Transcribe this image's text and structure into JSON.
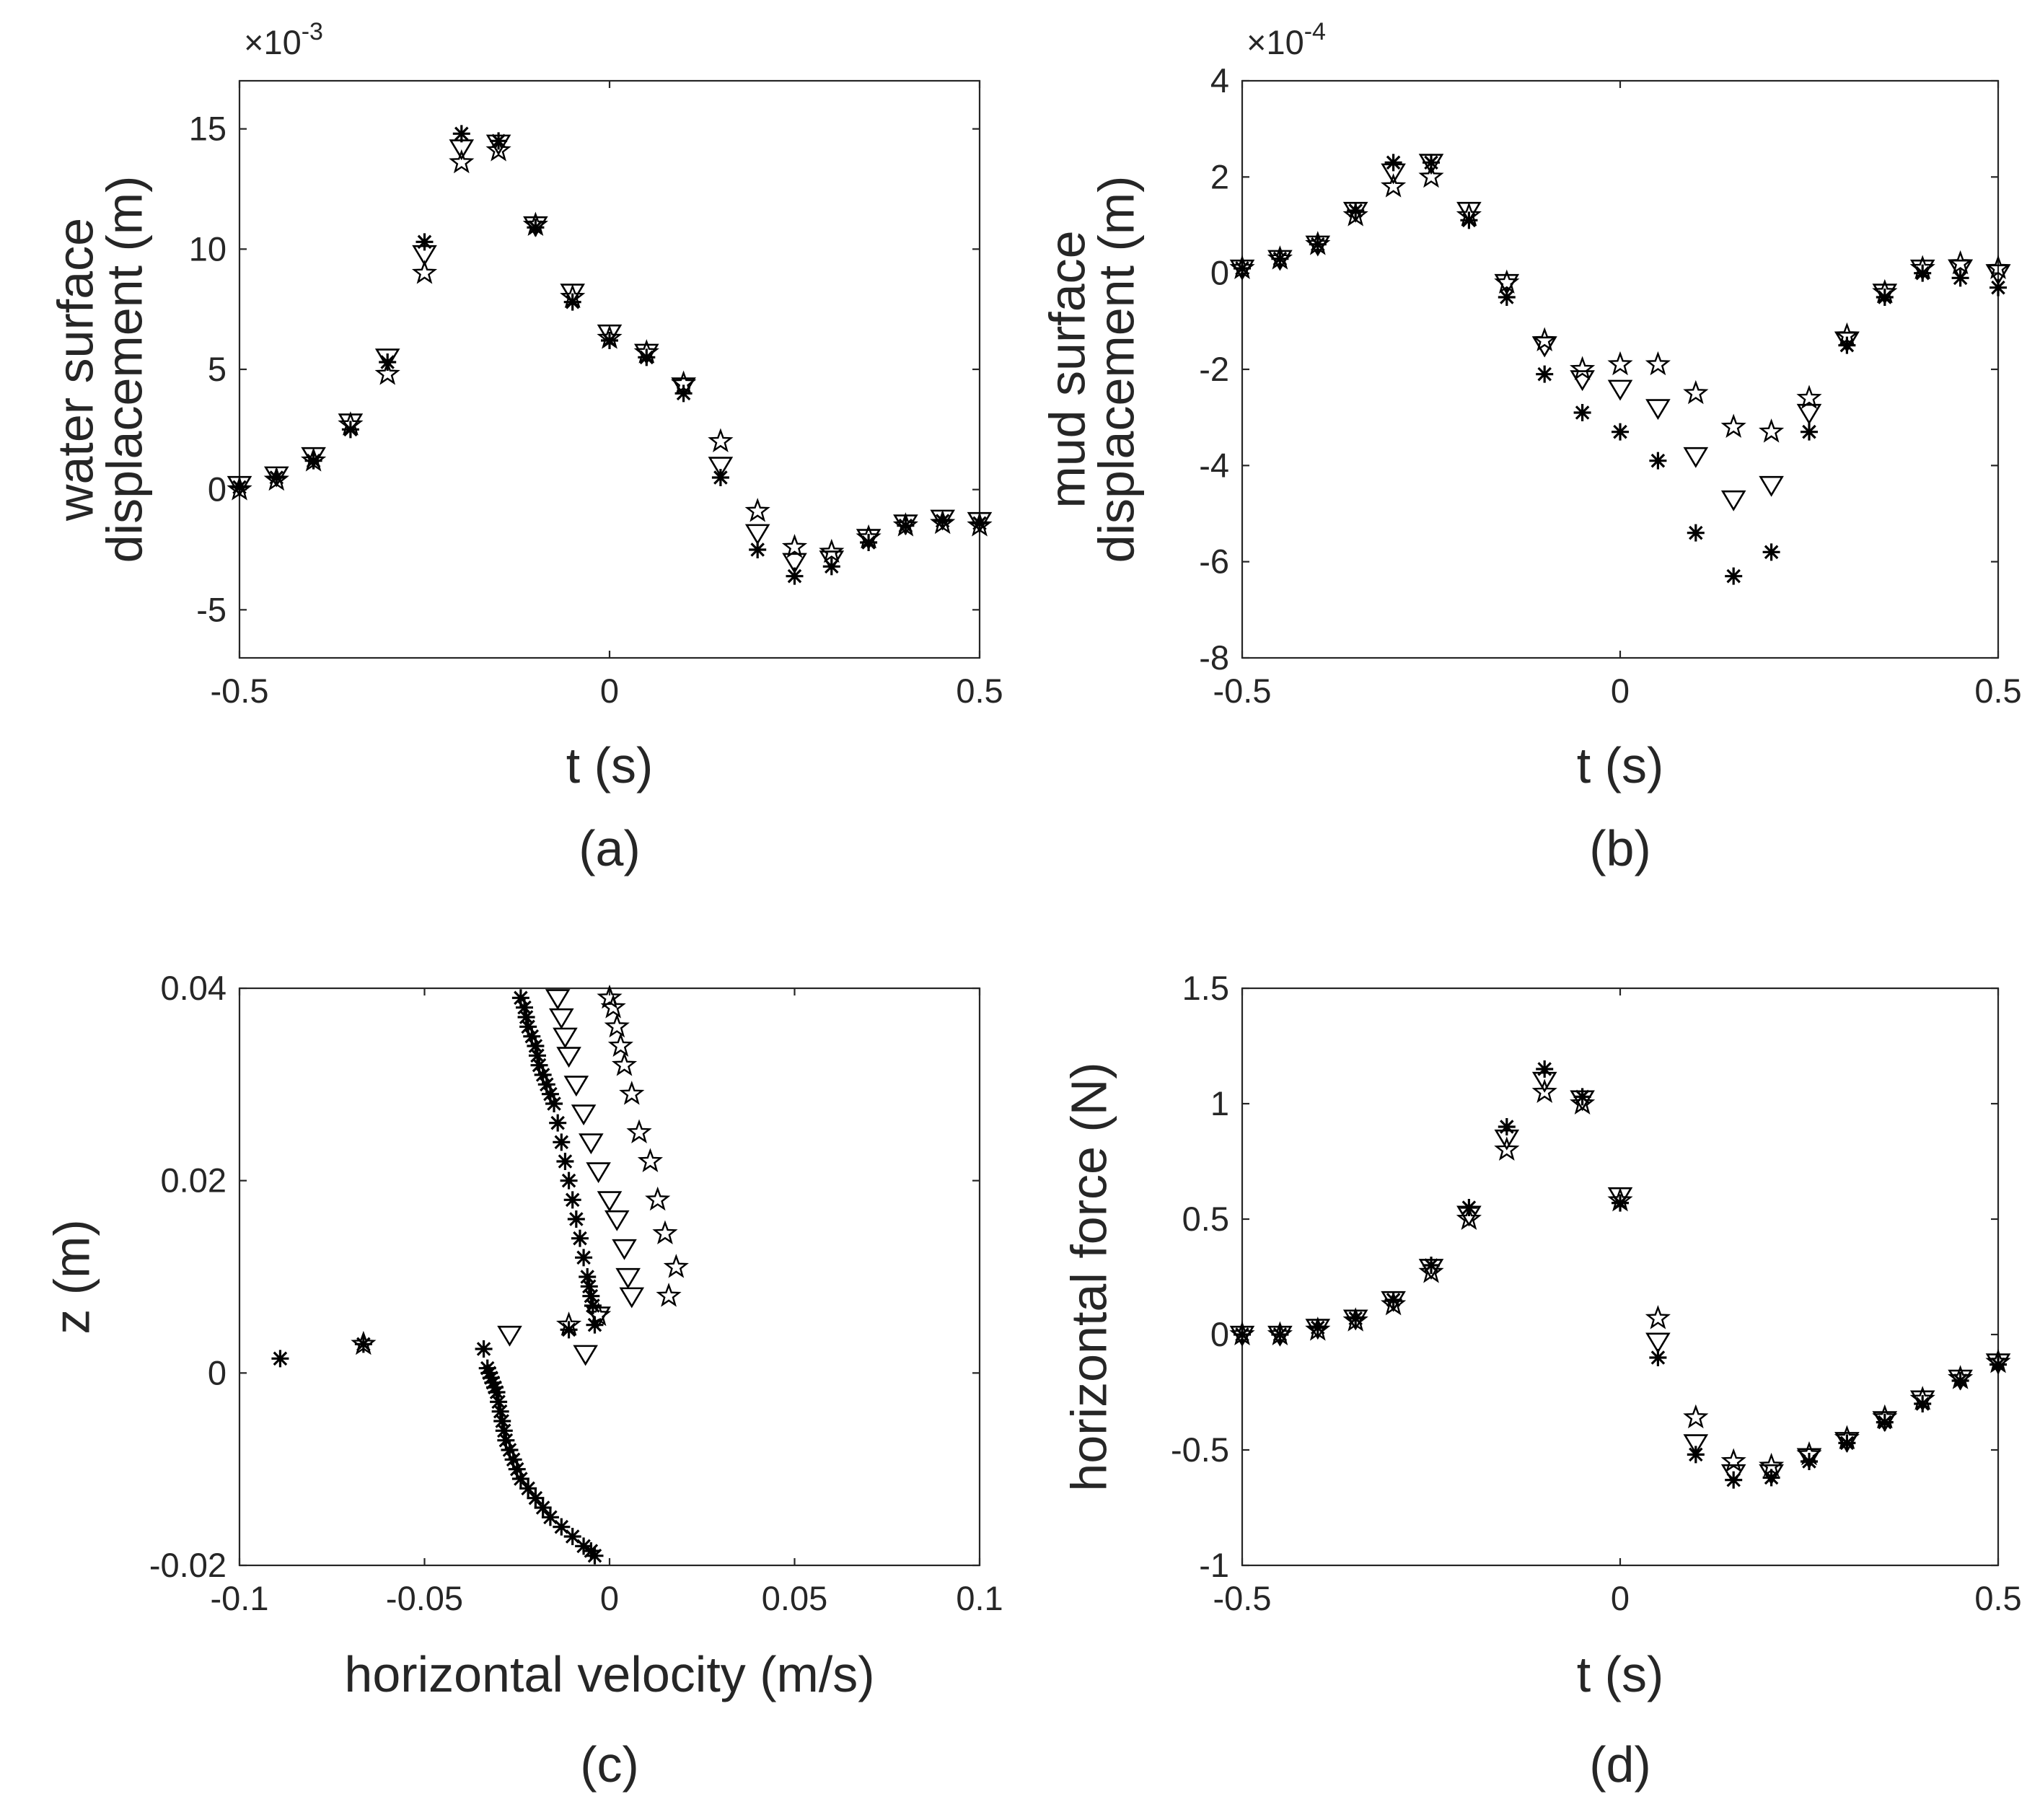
{
  "chart_data": [
    {
      "type": "scatter",
      "panel_label": "(a)",
      "xlabel": "t (s)",
      "ylabel_lines": [
        "water surface",
        "displacement (m)"
      ],
      "xlim": [
        -0.5,
        0.5
      ],
      "ylim": [
        -7,
        17
      ],
      "xticks": [
        -0.5,
        0,
        0.5
      ],
      "xtick_labels": [
        "-0.5",
        "0",
        "0.5"
      ],
      "yticks": [
        -5,
        0,
        5,
        10,
        15
      ],
      "ytick_labels": [
        "-5",
        "0",
        "5",
        "10",
        "15"
      ],
      "exponent_label": "×10",
      "exponent_power": "-3",
      "grid": false,
      "series": [
        {
          "marker": "asterisk",
          "x": [
            -0.5,
            -0.45,
            -0.4,
            -0.35,
            -0.3,
            -0.25,
            -0.2,
            -0.15,
            -0.1,
            -0.05,
            0,
            0.05,
            0.1,
            0.15,
            0.2,
            0.25,
            0.3,
            0.35,
            0.4,
            0.45,
            0.5
          ],
          "y": [
            0.1,
            0.5,
            1.2,
            2.5,
            5.3,
            10.3,
            14.8,
            14.5,
            10.9,
            7.8,
            6.2,
            5.5,
            4.0,
            0.5,
            -2.5,
            -3.6,
            -3.2,
            -2.2,
            -1.5,
            -1.3,
            -1.4
          ]
        },
        {
          "marker": "triangle-down",
          "x": [
            -0.5,
            -0.45,
            -0.4,
            -0.35,
            -0.3,
            -0.25,
            -0.2,
            -0.15,
            -0.1,
            -0.05,
            0,
            0.05,
            0.1,
            0.15,
            0.2,
            0.25,
            0.3,
            0.35,
            0.4,
            0.45,
            0.5
          ],
          "y": [
            0.2,
            0.6,
            1.4,
            2.8,
            5.5,
            9.8,
            14.2,
            14.4,
            11.0,
            8.2,
            6.5,
            5.7,
            4.3,
            1.0,
            -1.8,
            -3.0,
            -2.9,
            -2.0,
            -1.4,
            -1.2,
            -1.3
          ]
        },
        {
          "marker": "star",
          "x": [
            -0.5,
            -0.45,
            -0.4,
            -0.35,
            -0.3,
            -0.25,
            -0.2,
            -0.15,
            -0.1,
            -0.05,
            0,
            0.05,
            0.1,
            0.15,
            0.2,
            0.25,
            0.3,
            0.35,
            0.4,
            0.45,
            0.5
          ],
          "y": [
            0.0,
            0.4,
            1.2,
            2.7,
            4.8,
            9.0,
            13.6,
            14.1,
            11.0,
            8.0,
            6.3,
            5.7,
            4.4,
            2.0,
            -0.9,
            -2.4,
            -2.6,
            -2.0,
            -1.5,
            -1.4,
            -1.5
          ]
        }
      ]
    },
    {
      "type": "scatter",
      "panel_label": "(b)",
      "xlabel": "t (s)",
      "ylabel_lines": [
        "mud surface",
        "displacement (m)"
      ],
      "xlim": [
        -0.5,
        0.5
      ],
      "ylim": [
        -8,
        4
      ],
      "xticks": [
        -0.5,
        0,
        0.5
      ],
      "xtick_labels": [
        "-0.5",
        "0",
        "0.5"
      ],
      "yticks": [
        -8,
        -6,
        -4,
        -2,
        0,
        2,
        4
      ],
      "ytick_labels": [
        "-8",
        "-6",
        "-4",
        "-2",
        "0",
        "2",
        "4"
      ],
      "exponent_label": "×10",
      "exponent_power": "-4",
      "grid": false,
      "series": [
        {
          "marker": "asterisk",
          "x": [
            -0.5,
            -0.45,
            -0.4,
            -0.35,
            -0.3,
            -0.25,
            -0.2,
            -0.15,
            -0.1,
            -0.05,
            0,
            0.05,
            0.1,
            0.15,
            0.2,
            0.25,
            0.3,
            0.35,
            0.4,
            0.45,
            0.5
          ],
          "y": [
            0.1,
            0.3,
            0.6,
            1.3,
            2.3,
            2.3,
            1.1,
            -0.5,
            -2.1,
            -2.9,
            -3.3,
            -3.9,
            -5.4,
            -6.3,
            -5.8,
            -3.3,
            -1.5,
            -0.5,
            0.0,
            -0.1,
            -0.3
          ]
        },
        {
          "marker": "triangle-down",
          "x": [
            -0.5,
            -0.45,
            -0.4,
            -0.35,
            -0.3,
            -0.25,
            -0.2,
            -0.15,
            -0.1,
            -0.05,
            0,
            0.05,
            0.1,
            0.15,
            0.2,
            0.25,
            0.3,
            0.35,
            0.4,
            0.45,
            0.5
          ],
          "y": [
            0.1,
            0.3,
            0.6,
            1.3,
            2.1,
            2.3,
            1.3,
            -0.2,
            -1.5,
            -2.2,
            -2.4,
            -2.8,
            -3.8,
            -4.7,
            -4.4,
            -2.9,
            -1.4,
            -0.4,
            0.1,
            0.1,
            0.0
          ]
        },
        {
          "marker": "star",
          "x": [
            -0.5,
            -0.45,
            -0.4,
            -0.35,
            -0.3,
            -0.25,
            -0.2,
            -0.15,
            -0.1,
            -0.05,
            0,
            0.05,
            0.1,
            0.15,
            0.2,
            0.25,
            0.3,
            0.35,
            0.4,
            0.45,
            0.5
          ],
          "y": [
            0.1,
            0.3,
            0.6,
            1.2,
            1.8,
            2.0,
            1.2,
            -0.2,
            -1.4,
            -2.0,
            -1.9,
            -1.9,
            -2.5,
            -3.2,
            -3.3,
            -2.6,
            -1.3,
            -0.4,
            0.1,
            0.2,
            0.1
          ]
        }
      ]
    },
    {
      "type": "scatter",
      "panel_label": "(c)",
      "xlabel": "horizontal velocity (m/s)",
      "ylabel_lines": [
        "z (m)"
      ],
      "xlim": [
        -0.1,
        0.1
      ],
      "ylim": [
        -0.02,
        0.04
      ],
      "xticks": [
        -0.1,
        -0.05,
        0,
        0.05,
        0.1
      ],
      "xtick_labels": [
        "-0.1",
        "-0.05",
        "0",
        "0.05",
        "0.1"
      ],
      "yticks": [
        -0.02,
        0,
        0.02,
        0.04
      ],
      "ytick_labels": [
        "-0.02",
        "0",
        "0.02",
        "0.04"
      ],
      "grid": false,
      "series": [
        {
          "marker": "asterisk",
          "x": [
            -0.089,
            -0.0665,
            -0.034,
            -0.033,
            -0.0325,
            -0.032,
            -0.0315,
            -0.031,
            -0.0305,
            -0.03,
            -0.0295,
            -0.029,
            -0.0285,
            -0.028,
            -0.027,
            -0.026,
            -0.025,
            -0.024,
            -0.022,
            -0.02,
            -0.018,
            -0.016,
            -0.013,
            -0.01,
            -0.007,
            -0.005,
            -0.004,
            -0.011,
            -0.004,
            -0.0045,
            -0.005,
            -0.0055,
            -0.006,
            -0.007,
            -0.008,
            -0.009,
            -0.01,
            -0.011,
            -0.012,
            -0.013,
            -0.014,
            -0.015,
            -0.016,
            -0.017,
            -0.018,
            -0.019,
            -0.0195,
            -0.02,
            -0.021,
            -0.022,
            -0.0225,
            -0.023,
            -0.024
          ],
          "y": [
            0.0015,
            0.003,
            0.0025,
            0.0005,
            0.0,
            -0.0005,
            -0.001,
            -0.0015,
            -0.002,
            -0.003,
            -0.004,
            -0.005,
            -0.006,
            -0.007,
            -0.008,
            -0.009,
            -0.01,
            -0.011,
            -0.012,
            -0.013,
            -0.014,
            -0.015,
            -0.016,
            -0.017,
            -0.018,
            -0.0185,
            -0.019,
            0.0045,
            0.005,
            0.007,
            0.008,
            0.009,
            0.01,
            0.012,
            0.014,
            0.016,
            0.018,
            0.02,
            0.022,
            0.024,
            0.026,
            0.028,
            0.029,
            0.03,
            0.031,
            0.032,
            0.033,
            0.034,
            0.035,
            0.036,
            0.037,
            0.038,
            0.039
          ]
        },
        {
          "marker": "triangle-down",
          "x": [
            -0.0065,
            -0.027,
            -0.003,
            0.006,
            0.005,
            0.004,
            0.002,
            0.0,
            -0.003,
            -0.005,
            -0.007,
            -0.009,
            -0.011,
            -0.012,
            -0.013,
            -0.014
          ],
          "y": [
            0.002,
            0.004,
            0.006,
            0.008,
            0.01,
            0.013,
            0.016,
            0.018,
            0.021,
            0.024,
            0.027,
            0.03,
            0.033,
            0.035,
            0.037,
            0.039
          ]
        },
        {
          "marker": "star",
          "x": [
            -0.0665,
            -0.011,
            -0.003,
            0.016,
            0.018,
            0.015,
            0.013,
            0.011,
            0.008,
            0.006,
            0.004,
            0.003,
            0.002,
            0.001,
            0.0
          ],
          "y": [
            0.003,
            0.005,
            0.006,
            0.008,
            0.011,
            0.0145,
            0.018,
            0.022,
            0.025,
            0.029,
            0.032,
            0.034,
            0.036,
            0.038,
            0.039
          ]
        }
      ]
    },
    {
      "type": "scatter",
      "panel_label": "(d)",
      "xlabel": "t (s)",
      "ylabel_lines": [
        "horizontal force (N)"
      ],
      "xlim": [
        -0.5,
        0.5
      ],
      "ylim": [
        -1,
        1.5
      ],
      "xticks": [
        -0.5,
        0,
        0.5
      ],
      "xtick_labels": [
        "-0.5",
        "0",
        "0.5"
      ],
      "yticks": [
        -1,
        -0.5,
        0,
        0.5,
        1,
        1.5
      ],
      "ytick_labels": [
        "-1",
        "-0.5",
        "0",
        "0.5",
        "1",
        "1.5"
      ],
      "grid": false,
      "series": [
        {
          "marker": "asterisk",
          "x": [
            -0.5,
            -0.45,
            -0.4,
            -0.35,
            -0.3,
            -0.25,
            -0.2,
            -0.15,
            -0.1,
            -0.05,
            0,
            0.05,
            0.1,
            0.15,
            0.2,
            0.25,
            0.3,
            0.35,
            0.4,
            0.45,
            0.5
          ],
          "y": [
            0.0,
            0.0,
            0.03,
            0.07,
            0.15,
            0.3,
            0.55,
            0.9,
            1.15,
            1.03,
            0.57,
            -0.1,
            -0.52,
            -0.63,
            -0.62,
            -0.55,
            -0.47,
            -0.38,
            -0.3,
            -0.2,
            -0.13
          ]
        },
        {
          "marker": "triangle-down",
          "x": [
            -0.5,
            -0.45,
            -0.4,
            -0.35,
            -0.3,
            -0.25,
            -0.2,
            -0.15,
            -0.1,
            -0.05,
            0,
            0.05,
            0.1,
            0.15,
            0.2,
            0.25,
            0.3,
            0.35,
            0.4,
            0.45,
            0.5
          ],
          "y": [
            0.0,
            0.0,
            0.03,
            0.07,
            0.15,
            0.29,
            0.52,
            0.85,
            1.1,
            1.02,
            0.6,
            -0.03,
            -0.47,
            -0.6,
            -0.6,
            -0.53,
            -0.46,
            -0.37,
            -0.28,
            -0.19,
            -0.12
          ]
        },
        {
          "marker": "star",
          "x": [
            -0.5,
            -0.45,
            -0.4,
            -0.35,
            -0.3,
            -0.25,
            -0.2,
            -0.15,
            -0.1,
            -0.05,
            0,
            0.05,
            0.1,
            0.15,
            0.2,
            0.25,
            0.3,
            0.35,
            0.4,
            0.45,
            0.5
          ],
          "y": [
            0.0,
            0.0,
            0.02,
            0.06,
            0.13,
            0.27,
            0.5,
            0.8,
            1.05,
            1.0,
            0.58,
            0.07,
            -0.36,
            -0.55,
            -0.57,
            -0.52,
            -0.45,
            -0.36,
            -0.28,
            -0.19,
            -0.12
          ]
        }
      ]
    }
  ]
}
